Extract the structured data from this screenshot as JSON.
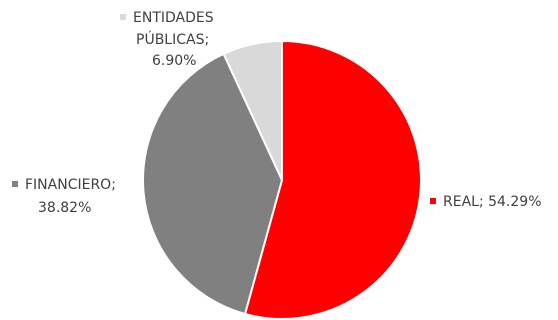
{
  "chart_data": {
    "type": "pie",
    "title": "",
    "slices": [
      {
        "name": "REAL",
        "value": 54.29,
        "label_line1": "REAL; 54.29%",
        "color": "#ff0000"
      },
      {
        "name": "FINANCIERO",
        "value": 38.82,
        "label_line1": "FINANCIERO;",
        "label_line2": "38.82%",
        "color": "#808080"
      },
      {
        "name": "ENTIDADES PÚBLICAS",
        "value": 6.9,
        "label_line1": "ENTIDADES",
        "label_line2": "PÚBLICAS;",
        "label_line3": "6.90%",
        "color": "#d9d9d9"
      }
    ],
    "start_angle_deg": 0,
    "direction": "clockwise",
    "legend": "none (data labels with color keys)"
  }
}
